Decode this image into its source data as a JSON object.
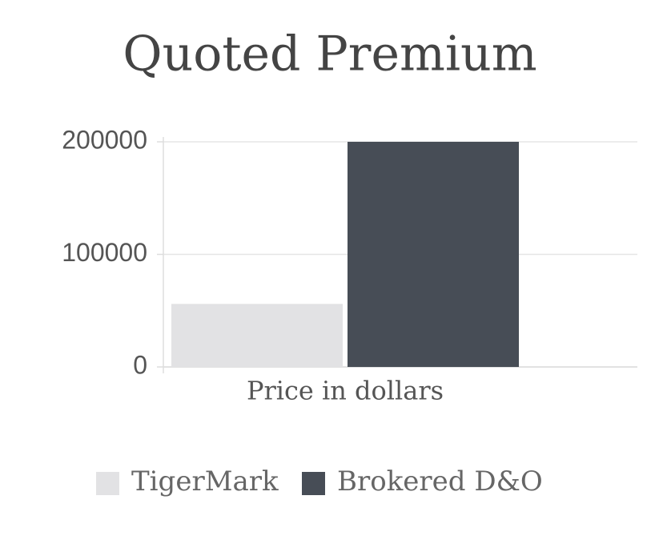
{
  "chart_data": {
    "type": "bar",
    "title": "Quoted Premium",
    "categories": [
      "Price in dollars"
    ],
    "series": [
      {
        "name": "TigerMark",
        "color": "#e2e2e4",
        "values": [
          56000
        ]
      },
      {
        "name": "Brokered D&O",
        "color": "#474d56",
        "values": [
          200000
        ]
      }
    ],
    "ylim": [
      0,
      200000
    ],
    "yticks": [
      0,
      100000,
      200000
    ],
    "grid": true
  }
}
